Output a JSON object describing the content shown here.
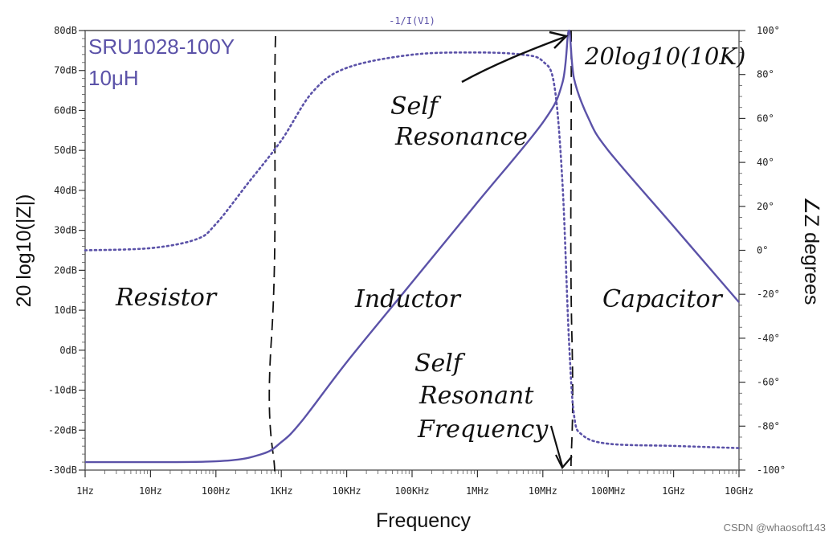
{
  "chart_data": {
    "type": "line",
    "title": "-1/I(V1)",
    "xlabel": "Frequency",
    "ylabel_left": "20 log10(|Z|)",
    "ylabel_right": "∠Z degrees",
    "x_scale": "log",
    "x_ticks": [
      "1Hz",
      "10Hz",
      "100Hz",
      "1KHz",
      "10KHz",
      "100KHz",
      "1MHz",
      "10MHz",
      "100MHz",
      "1GHz",
      "10GHz"
    ],
    "y_left_ticks": [
      "80dB",
      "70dB",
      "60dB",
      "50dB",
      "40dB",
      "30dB",
      "20dB",
      "10dB",
      "0dB",
      "-10dB",
      "-20dB",
      "-30dB"
    ],
    "y_right_ticks": [
      "100°",
      "80°",
      "60°",
      "40°",
      "20°",
      "0°",
      "-20°",
      "-40°",
      "-60°",
      "-80°",
      "-100°"
    ],
    "ylim_left": [
      -30,
      80
    ],
    "ylim_right": [
      -100,
      100
    ],
    "series": [
      {
        "style": "solid",
        "axis": "left",
        "color": "#5b52a8",
        "x": [
          "1Hz",
          "100Hz",
          "500Hz",
          "1KHz",
          "2KHz",
          "10KHz",
          "100KHz",
          "1MHz",
          "10MHz",
          "20MHz",
          "25MHz",
          "30MHz",
          "50MHz",
          "100MHz",
          "1GHz",
          "10GHz"
        ],
        "values": [
          -28,
          -27.8,
          -26,
          -23,
          -18,
          -3,
          17,
          37,
          57,
          67,
          80,
          68,
          58,
          50,
          31,
          12
        ]
      },
      {
        "style": "dotted",
        "axis": "right",
        "color": "#5b52a8",
        "x": [
          "1Hz",
          "10Hz",
          "50Hz",
          "100Hz",
          "300Hz",
          "1KHz",
          "3KHz",
          "10KHz",
          "100KHz",
          "1MHz",
          "5MHz",
          "10MHz",
          "15MHz",
          "20MHz",
          "25MHz",
          "30MHz",
          "40MHz",
          "100MHz",
          "1GHz",
          "10GHz"
        ],
        "values": [
          0,
          1,
          5,
          12,
          30,
          50,
          72,
          83,
          89,
          90,
          89,
          86,
          75,
          30,
          -40,
          -75,
          -84,
          -88,
          -89,
          -90
        ]
      }
    ],
    "annotations": [
      {
        "text": "SRU1028-100Y",
        "role": "part"
      },
      {
        "text": "10μH",
        "role": "part"
      },
      {
        "text": "20log10(10K)",
        "role": "note"
      },
      {
        "text": "Self Resonance",
        "role": "note"
      },
      {
        "text": "Resistor",
        "role": "region"
      },
      {
        "text": "Inductor",
        "role": "region"
      },
      {
        "text": "Capacitor",
        "role": "region"
      },
      {
        "text": "Self Resonant Frequency",
        "role": "note"
      }
    ],
    "grid": false,
    "legend": "none"
  },
  "watermark": "CSDN @whaosoft143"
}
